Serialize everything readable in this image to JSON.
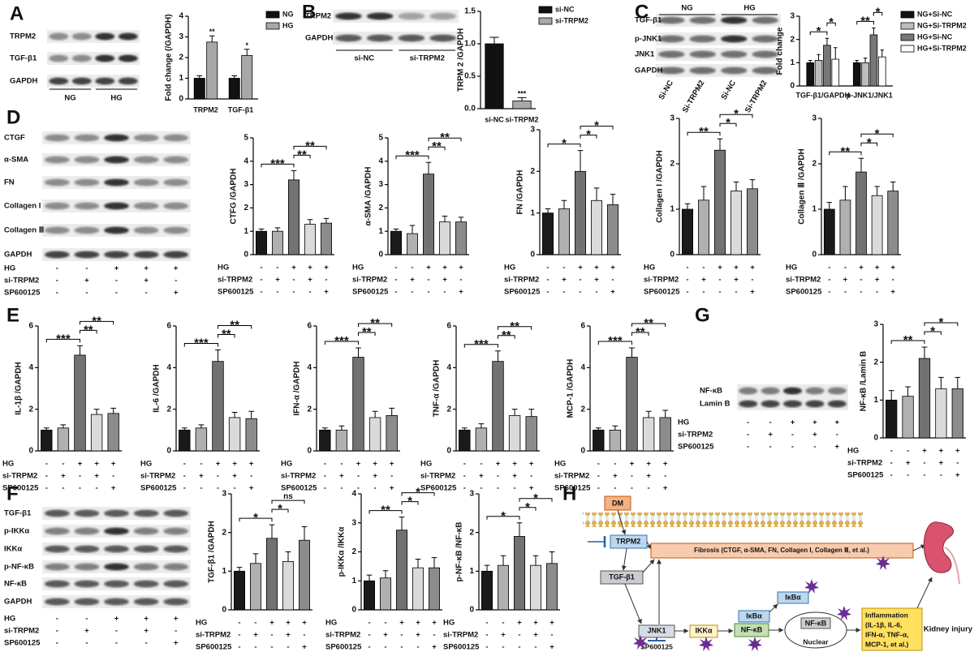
{
  "panel_labels": [
    "A",
    "B",
    "C",
    "D",
    "E",
    "F",
    "G",
    "H"
  ],
  "conditions": [
    {
      "name": "HG",
      "marks": [
        "-",
        "-",
        "+",
        "+",
        "+"
      ]
    },
    {
      "name": "si-TRPM2",
      "marks": [
        "-",
        "+",
        "-",
        "+",
        "-"
      ]
    },
    {
      "name": "SP600125",
      "marks": [
        "-",
        "-",
        "-",
        "-",
        "+"
      ]
    }
  ],
  "bar_colors": [
    "#1a1a1a",
    "#b0b0b0",
    "#727272",
    "#dadada",
    "#8c8c8c"
  ],
  "blots": [
    {
      "rows": [
        "TRPM2",
        "TGF-β1",
        "GAPDH"
      ],
      "groups": [
        "NG",
        "HG"
      ]
    },
    {
      "rows": [
        "TRPM2",
        "GAPDH"
      ],
      "groups": [
        "si-NC",
        "si-TRPM2"
      ]
    },
    {
      "rows": [
        "TGF-β1",
        "p-JNK1",
        "JNK1",
        "GAPDH"
      ],
      "groups": [
        "NG",
        "HG"
      ],
      "lanes": [
        "Si-NC",
        "Si-TRPM2",
        "Si-NC",
        "Si-TRPM2"
      ]
    },
    {
      "rows": [
        "CTGF",
        "α-SMA",
        "FN",
        "Collagen I",
        "Collagen Ⅲ",
        "GAPDH"
      ]
    },
    {
      "rows": [
        "TGF-β1",
        "p-IKKα",
        "IKKα",
        "p-NF-κB",
        "NF-κB",
        "GAPDH"
      ]
    },
    {
      "rows": [
        "NF-κB",
        "Lamin B"
      ]
    }
  ],
  "chart_data": [
    {
      "type": "bar",
      "ylabel": "Fold change (/GAPDH)",
      "categories": [
        "TRPM2",
        "TGF-β1"
      ],
      "ylim": [
        0,
        4
      ],
      "yticks": [
        0,
        1,
        2,
        3,
        4
      ],
      "series": [
        {
          "name": "NG",
          "color": "#111111",
          "values": [
            1.0,
            1.0
          ],
          "errors": [
            0.12,
            0.12
          ]
        },
        {
          "name": "HG",
          "color": "#a8a8a8",
          "values": [
            2.75,
            2.1
          ],
          "errors": [
            0.3,
            0.3
          ]
        }
      ],
      "stars": [
        {
          "series": 1,
          "index": 0,
          "label": "**"
        },
        {
          "series": 1,
          "index": 1,
          "label": "*"
        }
      ]
    },
    {
      "type": "bar",
      "ylabel": "TRPM 2 /GAPDH",
      "categories": [
        "si-NC",
        "si-TRPM2"
      ],
      "ylim": [
        0,
        1.5
      ],
      "yticks": [
        {
          "value": 0,
          "label": "0.0"
        },
        {
          "value": 0.5,
          "label": "0.5"
        },
        {
          "value": 1.0,
          "label": "1.0"
        },
        {
          "value": 1.5,
          "label": "1.5"
        }
      ],
      "values": [
        1.0,
        0.12
      ],
      "errors": [
        0.1,
        0.05
      ],
      "colors": [
        "#111111",
        "#a8a8a8"
      ],
      "legend": [
        "si-NC",
        "si-TRPM2"
      ],
      "stars": [
        {
          "index": 1,
          "label": "***"
        }
      ]
    },
    {
      "type": "bar",
      "ylabel": "Fold change",
      "categories": [
        "TGF-β1/GAPDH",
        "p-JNK1/JNK1"
      ],
      "ylim": [
        0,
        3
      ],
      "yticks": [
        0,
        1,
        2,
        3
      ],
      "series": [
        {
          "name": "NG+Si-NC",
          "color": "#111111",
          "values": [
            1.0,
            1.0
          ],
          "errors": [
            0.1,
            0.1
          ]
        },
        {
          "name": "NG+Si-TRPM2",
          "color": "#bdbdbd",
          "values": [
            1.1,
            1.0
          ],
          "errors": [
            0.25,
            0.2
          ]
        },
        {
          "name": "HG+Si-NC",
          "color": "#777777",
          "values": [
            1.75,
            2.2
          ],
          "errors": [
            0.3,
            0.3
          ]
        },
        {
          "name": "HG+Si-TRPM2",
          "color": "#ffffff",
          "values": [
            1.15,
            1.25
          ],
          "errors": [
            0.5,
            0.3
          ]
        }
      ],
      "brackets": [
        {
          "group": 0,
          "from": 0,
          "to": 2,
          "label": "*"
        },
        {
          "group": 0,
          "from": 2,
          "to": 3,
          "label": "*"
        },
        {
          "group": 1,
          "from": 0,
          "to": 2,
          "label": "**"
        },
        {
          "group": 1,
          "from": 2,
          "to": 3,
          "label": "*"
        }
      ]
    },
    {
      "type": "bar",
      "ylabel": "CTFG /GAPDH",
      "ylim": [
        0,
        5
      ],
      "yticks": [
        0,
        1,
        2,
        3,
        4,
        5
      ],
      "values": [
        1.0,
        1.0,
        3.2,
        1.3,
        1.35
      ],
      "errors": [
        0.1,
        0.15,
        0.4,
        0.2,
        0.2
      ],
      "brackets": [
        {
          "from": 0,
          "to": 2,
          "label": "***"
        },
        {
          "from": 2,
          "to": 3,
          "label": "**"
        },
        {
          "from": 2,
          "to": 4,
          "label": "**"
        }
      ]
    },
    {
      "type": "bar",
      "ylabel": "α-SMA /GAPDH",
      "ylim": [
        0,
        5
      ],
      "yticks": [
        0,
        1,
        2,
        3,
        4,
        5
      ],
      "values": [
        1.0,
        0.9,
        3.45,
        1.4,
        1.4
      ],
      "errors": [
        0.1,
        0.35,
        0.5,
        0.25,
        0.2
      ],
      "brackets": [
        {
          "from": 0,
          "to": 2,
          "label": "***"
        },
        {
          "from": 2,
          "to": 3,
          "label": "**"
        },
        {
          "from": 2,
          "to": 4,
          "label": "**"
        }
      ]
    },
    {
      "type": "bar",
      "ylabel": "FN /GAPDH",
      "ylim": [
        0,
        3
      ],
      "yticks": [
        0,
        1,
        2,
        3
      ],
      "values": [
        1.0,
        1.1,
        2.0,
        1.3,
        1.2
      ],
      "errors": [
        0.1,
        0.2,
        0.5,
        0.3,
        0.25
      ],
      "brackets": [
        {
          "from": 0,
          "to": 2,
          "label": "*"
        },
        {
          "from": 2,
          "to": 3,
          "label": "*"
        },
        {
          "from": 2,
          "to": 4,
          "label": "*"
        }
      ]
    },
    {
      "type": "bar",
      "ylabel": "Collagen I /GAPDH",
      "ylim": [
        0,
        3
      ],
      "yticks": [
        0,
        1,
        2,
        3
      ],
      "values": [
        1.0,
        1.2,
        2.3,
        1.4,
        1.45
      ],
      "errors": [
        0.12,
        0.3,
        0.25,
        0.2,
        0.2
      ],
      "brackets": [
        {
          "from": 0,
          "to": 2,
          "label": "**"
        },
        {
          "from": 2,
          "to": 3,
          "label": "*"
        },
        {
          "from": 2,
          "to": 4,
          "label": "*"
        }
      ]
    },
    {
      "type": "bar",
      "ylabel": "Collagen Ⅲ /GAPDH",
      "ylim": [
        0,
        3
      ],
      "yticks": [
        0,
        1,
        2,
        3
      ],
      "values": [
        1.0,
        1.2,
        1.82,
        1.3,
        1.4
      ],
      "errors": [
        0.15,
        0.3,
        0.3,
        0.2,
        0.2
      ],
      "brackets": [
        {
          "from": 0,
          "to": 2,
          "label": "**"
        },
        {
          "from": 2,
          "to": 3,
          "label": "*"
        },
        {
          "from": 2,
          "to": 4,
          "label": "*"
        }
      ]
    },
    {
      "type": "bar",
      "ylabel": "IL-1β /GAPDH",
      "ylim": [
        0,
        6
      ],
      "yticks": [
        0,
        2,
        4,
        6
      ],
      "values": [
        1.0,
        1.1,
        4.6,
        1.75,
        1.8
      ],
      "errors": [
        0.1,
        0.15,
        0.45,
        0.25,
        0.25
      ],
      "brackets": [
        {
          "from": 0,
          "to": 2,
          "label": "***"
        },
        {
          "from": 2,
          "to": 3,
          "label": "**"
        },
        {
          "from": 2,
          "to": 4,
          "label": "**"
        }
      ]
    },
    {
      "type": "bar",
      "ylabel": "IL-6 /GAPDH",
      "ylim": [
        0,
        6
      ],
      "yticks": [
        0,
        2,
        4,
        6
      ],
      "values": [
        1.0,
        1.1,
        4.3,
        1.6,
        1.55
      ],
      "errors": [
        0.1,
        0.15,
        0.55,
        0.25,
        0.35
      ],
      "brackets": [
        {
          "from": 0,
          "to": 2,
          "label": "***"
        },
        {
          "from": 2,
          "to": 3,
          "label": "**"
        },
        {
          "from": 2,
          "to": 4,
          "label": "**"
        }
      ]
    },
    {
      "type": "bar",
      "ylabel": "IFN-α /GAPDH",
      "ylim": [
        0,
        6
      ],
      "yticks": [
        0,
        2,
        4,
        6
      ],
      "values": [
        1.0,
        1.0,
        4.5,
        1.6,
        1.7
      ],
      "errors": [
        0.1,
        0.2,
        0.45,
        0.3,
        0.35
      ],
      "brackets": [
        {
          "from": 0,
          "to": 2,
          "label": "***"
        },
        {
          "from": 2,
          "to": 3,
          "label": "**"
        },
        {
          "from": 2,
          "to": 4,
          "label": "**"
        }
      ]
    },
    {
      "type": "bar",
      "ylabel": "TNF-α /GAPDH",
      "ylim": [
        0,
        6
      ],
      "yticks": [
        0,
        2,
        4,
        6
      ],
      "values": [
        1.0,
        1.1,
        4.3,
        1.7,
        1.65
      ],
      "errors": [
        0.1,
        0.2,
        0.5,
        0.3,
        0.35
      ],
      "brackets": [
        {
          "from": 0,
          "to": 2,
          "label": "***"
        },
        {
          "from": 2,
          "to": 3,
          "label": "**"
        },
        {
          "from": 2,
          "to": 4,
          "label": "**"
        }
      ]
    },
    {
      "type": "bar",
      "ylabel": "MCP-1 /GAPDH",
      "ylim": [
        0,
        6
      ],
      "yticks": [
        0,
        2,
        4,
        6
      ],
      "values": [
        1.0,
        1.0,
        4.5,
        1.6,
        1.6
      ],
      "errors": [
        0.1,
        0.2,
        0.45,
        0.3,
        0.35
      ],
      "brackets": [
        {
          "from": 0,
          "to": 2,
          "label": "***"
        },
        {
          "from": 2,
          "to": 3,
          "label": "**"
        },
        {
          "from": 2,
          "to": 4,
          "label": "**"
        }
      ]
    },
    {
      "type": "bar",
      "ylabel": "TGF-β1 /GAPDH",
      "ylim": [
        0,
        3
      ],
      "yticks": [
        0,
        1,
        2,
        3
      ],
      "values": [
        1.0,
        1.2,
        1.85,
        1.25,
        1.8
      ],
      "errors": [
        0.1,
        0.25,
        0.35,
        0.25,
        0.35
      ],
      "brackets": [
        {
          "from": 0,
          "to": 2,
          "label": "*"
        },
        {
          "from": 2,
          "to": 3,
          "label": "*"
        },
        {
          "from": 2,
          "to": 4,
          "label": "ns"
        }
      ]
    },
    {
      "type": "bar",
      "ylabel": "p-IKKα /IKKα",
      "ylim": [
        0,
        4
      ],
      "yticks": [
        0,
        1,
        2,
        3,
        4
      ],
      "values": [
        1.0,
        1.1,
        2.75,
        1.45,
        1.45
      ],
      "errors": [
        0.2,
        0.25,
        0.45,
        0.3,
        0.35
      ],
      "brackets": [
        {
          "from": 0,
          "to": 2,
          "label": "**"
        },
        {
          "from": 2,
          "to": 3,
          "label": "*"
        },
        {
          "from": 2,
          "to": 4,
          "label": "*"
        }
      ]
    },
    {
      "type": "bar",
      "ylabel": "p-NF-κB /NF-κB",
      "ylim": [
        0,
        3
      ],
      "yticks": [
        0,
        1,
        2,
        3
      ],
      "values": [
        1.0,
        1.15,
        1.9,
        1.15,
        1.2
      ],
      "errors": [
        0.15,
        0.25,
        0.35,
        0.25,
        0.3
      ],
      "brackets": [
        {
          "from": 0,
          "to": 2,
          "label": "*"
        },
        {
          "from": 2,
          "to": 3,
          "label": "*"
        },
        {
          "from": 2,
          "to": 4,
          "label": "*"
        }
      ]
    },
    {
      "type": "bar",
      "ylabel": "NF-κB /Lamin B",
      "ylim": [
        0,
        3
      ],
      "yticks": [
        0,
        1,
        2,
        3
      ],
      "values": [
        1.0,
        1.1,
        2.1,
        1.3,
        1.3
      ],
      "errors": [
        0.25,
        0.25,
        0.3,
        0.3,
        0.3
      ],
      "brackets": [
        {
          "from": 0,
          "to": 2,
          "label": "**"
        },
        {
          "from": 2,
          "to": 3,
          "label": "*"
        },
        {
          "from": 2,
          "to": 4,
          "label": "*"
        }
      ]
    }
  ],
  "diagram": {
    "dm": "DM",
    "trpm2": "TRPM2",
    "tgf": "TGF-β1",
    "fibrosis": "Fibrosis (CTGF, α-SMA, FN,  Collagen I,  Collagen Ⅲ, et al.)",
    "jnk1": "JNK1",
    "ikka": "IKKα",
    "nfkb": "NF-κB",
    "ikba": "IκBα",
    "ikba_free": "IκBα",
    "nfkb_nuclear": "NF-κB",
    "nuclear": "Nuclear",
    "inflammation": [
      "Inflammation",
      "(IL-1β, IL-6,",
      "IFN-α, TNF-α,",
      "MCP-1, et al.)"
    ],
    "kidney": "Kidney injury",
    "inhibitor": "SP600125"
  }
}
